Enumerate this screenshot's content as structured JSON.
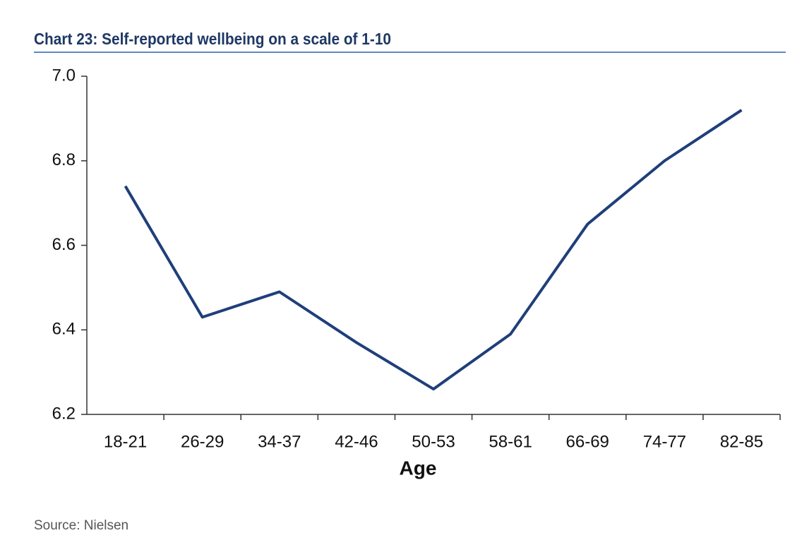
{
  "chart_data": {
    "type": "line",
    "title": "Chart 23: Self-reported wellbeing on a scale of 1-10",
    "x_label": "Age",
    "source": "Source: Nielsen",
    "categories": [
      "18-21",
      "26-29",
      "34-37",
      "42-46",
      "50-53",
      "58-61",
      "66-69",
      "74-77",
      "82-85"
    ],
    "series": [
      {
        "name": "Wellbeing",
        "color": "#1f3f7a",
        "values": [
          6.74,
          6.43,
          6.49,
          6.37,
          6.26,
          6.39,
          6.65,
          6.8,
          6.92
        ]
      }
    ],
    "ylim": [
      6.2,
      7.0
    ],
    "yticks": [
      6.2,
      6.4,
      6.6,
      6.8,
      {
        "value": 7.0,
        "label": "7.0"
      }
    ],
    "grid": false
  }
}
